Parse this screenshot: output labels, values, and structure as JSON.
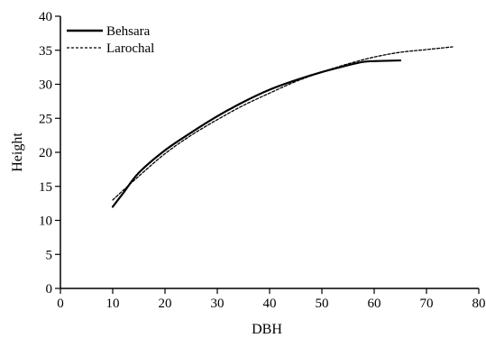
{
  "chart_data": {
    "type": "line",
    "title": "",
    "xlabel": "DBH",
    "ylabel": "Height",
    "xlim": [
      0,
      80
    ],
    "ylim": [
      0,
      40
    ],
    "xticks": [
      "0",
      "10",
      "20",
      "30",
      "40",
      "50",
      "60",
      "70",
      "80"
    ],
    "yticks": [
      "0",
      "5",
      "10",
      "15",
      "20",
      "25",
      "30",
      "35",
      "40"
    ],
    "grid": false,
    "legend_position": "top-left",
    "series": [
      {
        "name": "Behsara",
        "line_style": "solid",
        "color": "#000000",
        "x": [
          10,
          12,
          15,
          20,
          25,
          30,
          35,
          40,
          45,
          50,
          55,
          58,
          60,
          65
        ],
        "y": [
          12,
          14,
          17,
          20.3,
          22.9,
          25.3,
          27.4,
          29.2,
          30.6,
          31.8,
          32.8,
          33.3,
          33.4,
          33.5
        ]
      },
      {
        "name": "Larochal",
        "line_style": "dashed",
        "color": "#000000",
        "x": [
          10,
          15,
          20,
          25,
          30,
          35,
          40,
          45,
          50,
          55,
          60,
          65,
          70,
          75
        ],
        "y": [
          13,
          16.5,
          19.8,
          22.5,
          24.8,
          26.9,
          28.7,
          30.4,
          31.8,
          33,
          34,
          34.7,
          35.1,
          35.5
        ]
      }
    ]
  }
}
